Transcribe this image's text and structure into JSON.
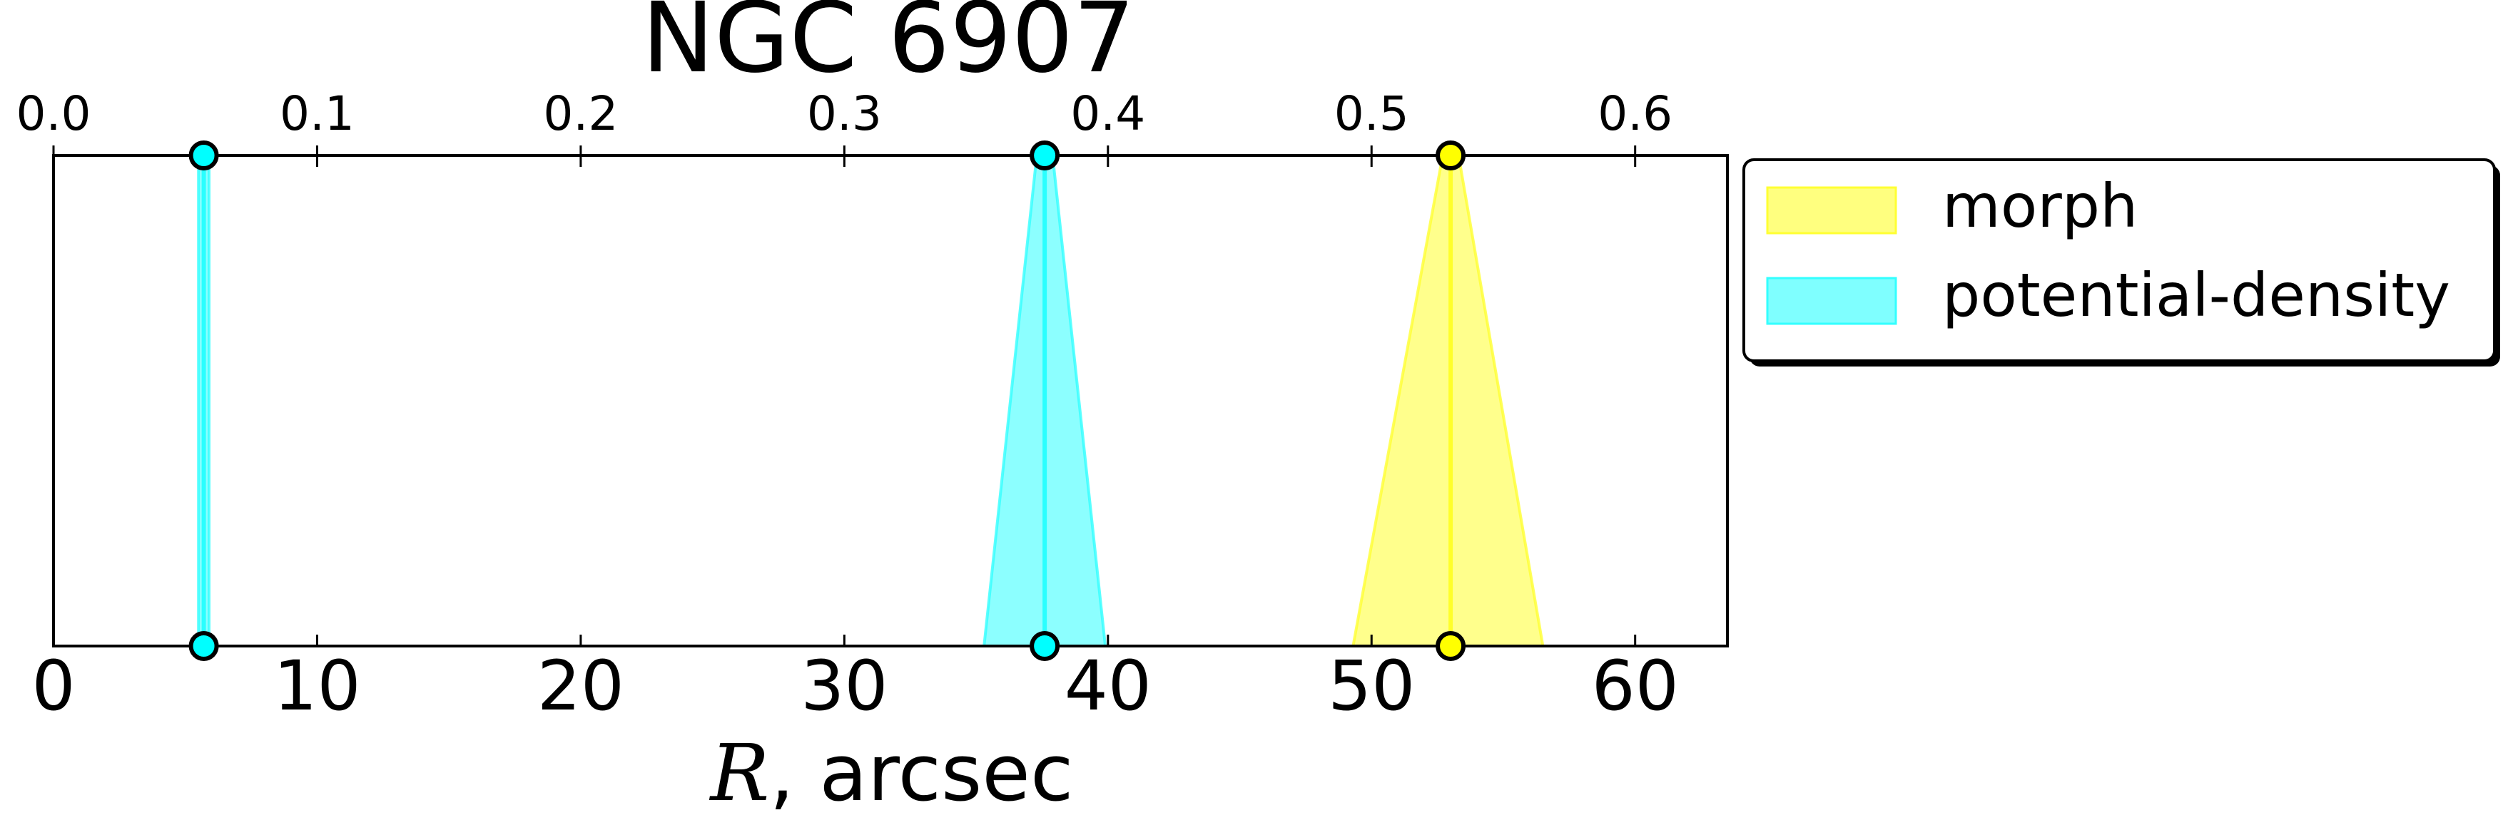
{
  "chart_data": {
    "type": "area",
    "title": "NGC 6907",
    "xlabel_math": "R",
    "xlabel_rest": ", arcsec",
    "xlim": [
      0,
      63.5
    ],
    "x_ticks": [
      0,
      10,
      20,
      30,
      40,
      50,
      60
    ],
    "x_tick_labels": [
      "0",
      "10",
      "20",
      "30",
      "40",
      "50",
      "60"
    ],
    "top_axis": {
      "scale_per_bottom_unit": 0.01,
      "ticks": [
        0.0,
        0.1,
        0.2,
        0.3,
        0.4,
        0.5,
        0.6
      ],
      "tick_labels": [
        "0.0",
        "0.1",
        "0.2",
        "0.3",
        "0.4",
        "0.5",
        "0.6"
      ]
    },
    "grid": false,
    "legend_position": "outside upper-right",
    "series": [
      {
        "name": "morph",
        "color": "#ffff00",
        "edge_color": "#ffff33",
        "markers": [
          {
            "top": 53.0,
            "bottom": 53.0
          }
        ],
        "bands": [
          {
            "top": [
              52.7,
              53.3
            ],
            "bottom": [
              49.3,
              56.5
            ]
          }
        ]
      },
      {
        "name": "potential-density",
        "color": "#00ffff",
        "edge_color": "#33ffff",
        "markers": [
          {
            "top": 5.7,
            "bottom": 5.7
          },
          {
            "top": 37.6,
            "bottom": 37.6
          }
        ],
        "bands": [
          {
            "top": [
              5.5,
              5.9
            ],
            "bottom": [
              5.5,
              5.9
            ]
          },
          {
            "top": [
              37.3,
              37.9
            ],
            "bottom": [
              35.3,
              39.9
            ]
          }
        ]
      }
    ]
  }
}
